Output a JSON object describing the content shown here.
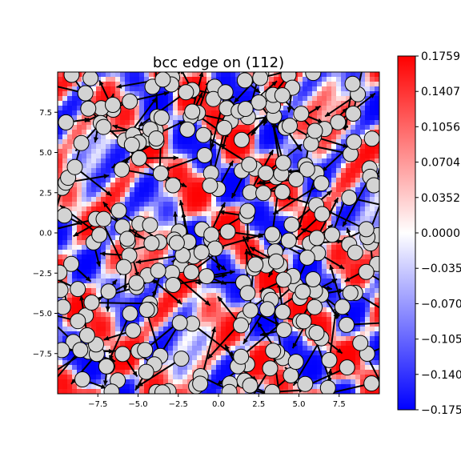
{
  "chart_data": {
    "type": "heatmap",
    "title": "bcc edge on (112)",
    "xlabel": "",
    "ylabel": "",
    "xlim": [
      -10,
      10
    ],
    "ylim": [
      -10,
      10
    ],
    "x_ticks": [
      -7.5,
      -5.0,
      -2.5,
      0.0,
      2.5,
      5.0,
      7.5
    ],
    "x_tick_labels": [
      "−7.5",
      "−5.0",
      "−2.5",
      "0.0",
      "2.5",
      "5.0",
      "7.5"
    ],
    "y_ticks": [
      -7.5,
      -5.0,
      -2.5,
      0.0,
      2.5,
      5.0,
      7.5
    ],
    "y_tick_labels": [
      "−7.5",
      "−5.0",
      "−2.5",
      "0.0",
      "2.5",
      "5.0",
      "7.5"
    ],
    "colormap": "bwr",
    "colors": {
      "min": "#0000ff",
      "mid": "#ffffff",
      "max": "#ff0000",
      "atom_fill": "#d3d3d3",
      "atom_edge": "#000000",
      "arrow": "#000000"
    },
    "colorbar": {
      "vmin": -0.1759,
      "vmax": 0.1759,
      "ticks": [
        0.1759,
        0.1407,
        0.1056,
        0.0704,
        0.0352,
        0.0,
        -0.0352,
        -0.0704,
        -0.1056,
        -0.1407,
        -0.1759
      ],
      "tick_labels": [
        "0.1759",
        "0.1407",
        "0.1056",
        "0.0704",
        "0.0352",
        "0.0000",
        "−0.0352",
        "−0.0704",
        "−0.1056",
        "−0.1407",
        "−0.1759"
      ]
    },
    "grid": false,
    "legend": "none"
  }
}
